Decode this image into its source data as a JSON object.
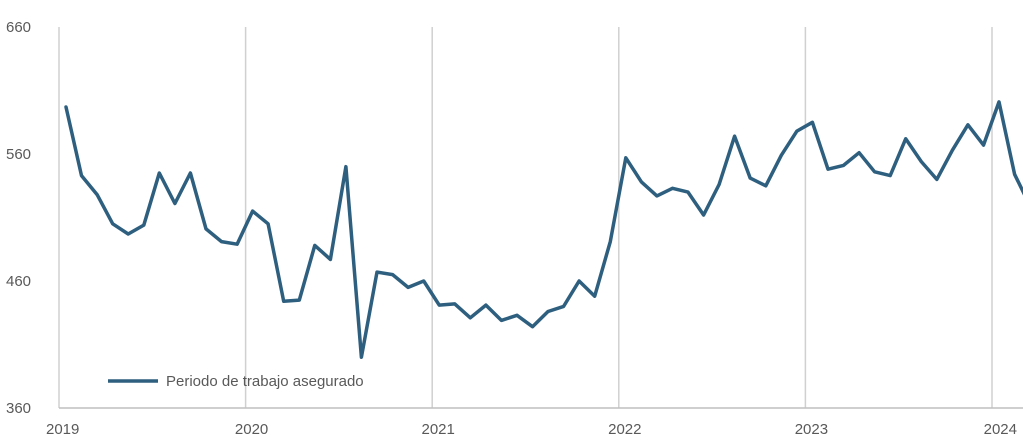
{
  "chart_data": {
    "type": "line",
    "title": "",
    "xlabel": "",
    "ylabel": "",
    "ylim": [
      360,
      660
    ],
    "yticks": [
      360,
      460,
      560,
      660
    ],
    "xticks": [
      "2019",
      "2020",
      "2021",
      "2022",
      "2023",
      "2024"
    ],
    "grid": "vertical-at-years",
    "legend": "bottom-left",
    "colors": {
      "series": "#2e5f7f",
      "gridline": "#d0d0d0",
      "axis": "#bfbfbf",
      "text": "#595959"
    },
    "series": [
      {
        "name": "Periodo de trabajo asegurado",
        "x_start": "2019-01",
        "x_step": "month",
        "values": [
          597,
          543,
          528,
          505,
          497,
          504,
          545,
          521,
          545,
          501,
          491,
          489,
          515,
          505,
          444,
          445,
          488,
          477,
          550,
          400,
          467,
          465,
          455,
          460,
          441,
          442,
          431,
          441,
          429,
          433,
          424,
          436,
          440,
          460,
          448,
          491,
          557,
          538,
          527,
          533,
          530,
          512,
          536,
          574,
          541,
          535,
          559,
          578,
          585,
          548,
          551,
          561,
          546,
          543,
          572,
          554,
          540,
          563,
          583,
          567,
          601,
          544,
          519
        ]
      }
    ]
  }
}
